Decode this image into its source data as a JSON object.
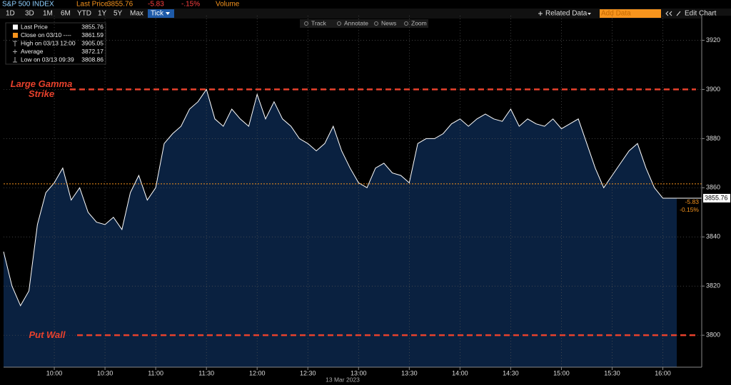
{
  "quote": {
    "name": "S&P 500 INDEX",
    "last_label": "Last Price",
    "last": 3855.76,
    "change": -5.83,
    "change_pct": "-.15%",
    "volume_label": "Volume"
  },
  "toolbar": {
    "ranges": [
      "1D",
      "3D",
      "1M",
      "6M",
      "YTD",
      "1Y",
      "5Y",
      "Max"
    ],
    "active": "Tick",
    "related": "Related Data",
    "add": "Add Data",
    "edit": "Edit Chart",
    "tools": [
      "Track",
      "Annotate",
      "News",
      "Zoom"
    ]
  },
  "chart_data": {
    "type": "area",
    "x": [
      "09:30",
      "09:35",
      "09:40",
      "09:45",
      "09:50",
      "09:55",
      "10:00",
      "10:05",
      "10:10",
      "10:15",
      "10:20",
      "10:25",
      "10:30",
      "10:35",
      "10:40",
      "10:45",
      "10:50",
      "10:55",
      "11:00",
      "11:05",
      "11:10",
      "11:15",
      "11:20",
      "11:25",
      "11:30",
      "11:35",
      "11:40",
      "11:45",
      "11:50",
      "11:55",
      "12:00",
      "12:05",
      "12:10",
      "12:15",
      "12:20",
      "12:25",
      "12:30",
      "12:35",
      "12:40",
      "12:45",
      "12:50",
      "12:55",
      "13:00",
      "13:05",
      "13:10",
      "13:15",
      "13:20",
      "13:25",
      "13:30",
      "13:35",
      "13:40",
      "13:45",
      "13:50",
      "13:55",
      "14:00",
      "14:05",
      "14:10",
      "14:15",
      "14:20",
      "14:25",
      "14:30",
      "14:35",
      "14:40",
      "14:45",
      "14:50",
      "14:55",
      "15:00",
      "15:05",
      "15:10",
      "15:15",
      "15:20",
      "15:25",
      "15:30",
      "15:35",
      "15:40",
      "15:45",
      "15:50",
      "15:55",
      "16:00"
    ],
    "series": [
      {
        "name": "Last Price",
        "color": "#ffffff",
        "values": [
          3834,
          3820,
          3812,
          3818,
          3845,
          3858,
          3862,
          3868,
          3855,
          3860,
          3850,
          3846,
          3845,
          3848,
          3843,
          3858,
          3865,
          3855,
          3860,
          3878,
          3882,
          3885,
          3892,
          3895,
          3900,
          3888,
          3885,
          3892,
          3888,
          3885,
          3898,
          3888,
          3895,
          3888,
          3885,
          3880,
          3878,
          3875,
          3878,
          3885,
          3875,
          3868,
          3862,
          3860,
          3868,
          3870,
          3866,
          3865,
          3862,
          3878,
          3880,
          3880,
          3882,
          3886,
          3888,
          3885,
          3888,
          3890,
          3888,
          3887,
          3892,
          3885,
          3888,
          3886,
          3885,
          3888,
          3884,
          3886,
          3888,
          3878,
          3868,
          3860,
          3865,
          3870,
          3875,
          3878,
          3868,
          3860,
          3855.76
        ]
      }
    ],
    "legend_entries": [
      {
        "name": "Last Price",
        "value": 3855.76
      },
      {
        "name": "Close on 03/10 ----",
        "value": 3861.59,
        "color": "#f7941d"
      },
      {
        "name": "High on 03/13 12:00",
        "value": 3905.05
      },
      {
        "name": "Average",
        "value": 3872.17
      },
      {
        "name": "Low on 03/13 09:39",
        "value": 3808.86
      }
    ],
    "annotations": [
      {
        "label": "Large Gamma Strike",
        "value": 3900,
        "color": "#e8412c"
      },
      {
        "label": "Put Wall",
        "value": 3800,
        "color": "#e8412c"
      }
    ],
    "last_marker": {
      "value": 3855.76,
      "change": -5.83,
      "change_pct": "-0.15%"
    },
    "xlim": [
      "09:30",
      "16:23"
    ],
    "xticks": [
      "10:00",
      "10:30",
      "11:00",
      "11:30",
      "12:00",
      "12:30",
      "13:00",
      "13:30",
      "14:00",
      "14:30",
      "15:00",
      "15:30",
      "16:00"
    ],
    "xlabel": "13 Mar 2023",
    "ylim": [
      3787,
      3930
    ],
    "yticks": [
      3800,
      3820,
      3840,
      3860,
      3880,
      3900,
      3920
    ],
    "grid": true,
    "fill_color": "#0a2140"
  }
}
